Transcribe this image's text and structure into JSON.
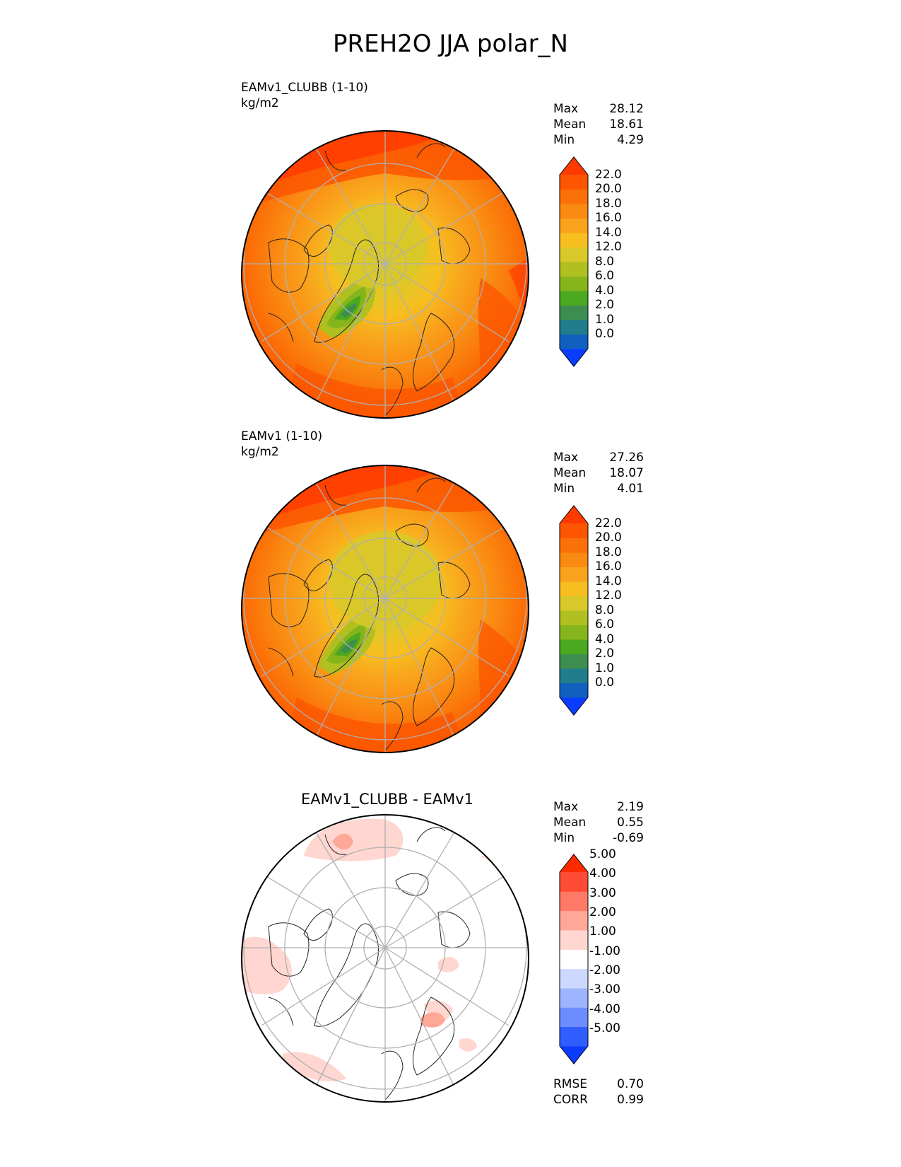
{
  "title": "PREH2O JJA polar_N",
  "colors": {
    "land_outline": "#222222",
    "grid": "#b0b0b0",
    "border": "#000000"
  },
  "panels": [
    {
      "label": "EAMv1_CLUBB (1-10)",
      "units": "kg/m2",
      "stats": [
        {
          "name": "Max",
          "value": "28.12"
        },
        {
          "name": "Mean",
          "value": "18.61"
        },
        {
          "name": "Min",
          "value": "4.29"
        }
      ],
      "colorbar": {
        "colors": [
          "#0a3cff",
          "#1060c0",
          "#1f7d8c",
          "#3d8c50",
          "#4ca81e",
          "#86b51b",
          "#b0c020",
          "#d8c82a",
          "#f7be1f",
          "#f9a31c",
          "#fa8a12",
          "#fb7008",
          "#fc5600",
          "#ff3a00"
        ],
        "ticks": [
          "0.0",
          "1.0",
          "2.0",
          "4.0",
          "6.0",
          "8.0",
          "12.0",
          "14.0",
          "16.0",
          "18.0",
          "20.0",
          "22.0"
        ]
      }
    },
    {
      "label": "EAMv1 (1-10)",
      "units": "kg/m2",
      "stats": [
        {
          "name": "Max",
          "value": "27.26"
        },
        {
          "name": "Mean",
          "value": "18.07"
        },
        {
          "name": "Min",
          "value": "4.01"
        }
      ],
      "colorbar": {
        "colors": [
          "#0a3cff",
          "#1060c0",
          "#1f7d8c",
          "#3d8c50",
          "#4ca81e",
          "#86b51b",
          "#b0c020",
          "#d8c82a",
          "#f7be1f",
          "#f9a31c",
          "#fa8a12",
          "#fb7008",
          "#fc5600",
          "#ff3a00"
        ],
        "ticks": [
          "0.0",
          "1.0",
          "2.0",
          "4.0",
          "6.0",
          "8.0",
          "12.0",
          "14.0",
          "16.0",
          "18.0",
          "20.0",
          "22.0"
        ]
      }
    },
    {
      "label": "EAMv1_CLUBB - EAMv1",
      "stats": [
        {
          "name": "Max",
          "value": "2.19"
        },
        {
          "name": "Mean",
          "value": "0.55"
        },
        {
          "name": "Min",
          "value": "-0.69"
        }
      ],
      "extra_stats": [
        {
          "name": "RMSE",
          "value": "0.70"
        },
        {
          "name": "CORR",
          "value": "0.99"
        }
      ],
      "colorbar": {
        "colors": [
          "#0a3cff",
          "#2f5dff",
          "#6c8dff",
          "#9fb4ff",
          "#cdd8ff",
          "#ffffff",
          "#ffd6d0",
          "#ffa898",
          "#ff7a66",
          "#ff4c34",
          "#ff2a00"
        ],
        "ticks": [
          "-5.00",
          "-4.00",
          "-3.00",
          "-2.00",
          "-1.00",
          "1.00",
          "2.00",
          "3.00",
          "4.00",
          "5.00"
        ]
      }
    }
  ],
  "chart_data": [
    {
      "type": "heatmap",
      "title": "EAMv1_CLUBB (1-10)",
      "units": "kg/m2",
      "projection": "north polar stereographic",
      "levels": [
        0,
        1,
        2,
        4,
        6,
        8,
        12,
        14,
        16,
        18,
        20,
        22
      ],
      "max": 28.12,
      "mean": 18.61,
      "min": 4.29
    },
    {
      "type": "heatmap",
      "title": "EAMv1 (1-10)",
      "units": "kg/m2",
      "projection": "north polar stereographic",
      "levels": [
        0,
        1,
        2,
        4,
        6,
        8,
        12,
        14,
        16,
        18,
        20,
        22
      ],
      "max": 27.26,
      "mean": 18.07,
      "min": 4.01
    },
    {
      "type": "heatmap",
      "title": "EAMv1_CLUBB - EAMv1",
      "projection": "north polar stereographic",
      "levels": [
        -5,
        -4,
        -3,
        -2,
        -1,
        1,
        2,
        3,
        4,
        5
      ],
      "max": 2.19,
      "mean": 0.55,
      "min": -0.69,
      "rmse": 0.7,
      "corr": 0.99
    }
  ]
}
